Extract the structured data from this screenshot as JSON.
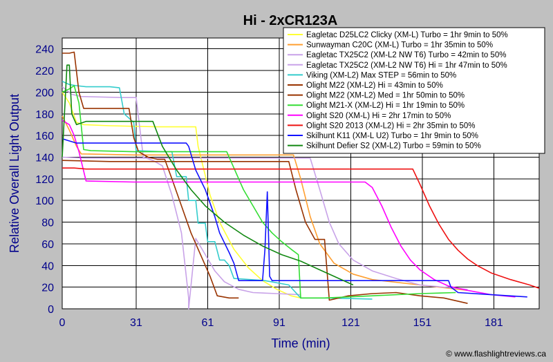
{
  "chart_data": {
    "type": "line",
    "title": "Hi - 2xCR123A",
    "xlabel": "Time (min)",
    "ylabel": "Relative Overall Light Output",
    "xlim": [
      0,
      200
    ],
    "ylim": [
      0,
      250
    ],
    "xticks": [
      0,
      31,
      61,
      91,
      121,
      151,
      181
    ],
    "yticks": [
      0,
      20,
      40,
      60,
      80,
      100,
      120,
      140,
      160,
      180,
      200,
      220,
      240
    ],
    "grid": true,
    "legend_position": "top-right",
    "credit": "© www.flashlightreviews.ca",
    "colors": {
      "background": "#c0c0c0",
      "plot_background": "#ffffff",
      "grid": "#000000",
      "axis_text": "#00008b"
    },
    "series": [
      {
        "name": "Eagletac D25LC2 Clicky (XM-L) Turbo = 1hr 9min to 50%",
        "color": "#ffff33",
        "points": [
          [
            0,
            200
          ],
          [
            3,
            190
          ],
          [
            6,
            172
          ],
          [
            9,
            170
          ],
          [
            20,
            169
          ],
          [
            40,
            168
          ],
          [
            56,
            168
          ],
          [
            57,
            150
          ],
          [
            62,
            105
          ],
          [
            66,
            80
          ],
          [
            72,
            55
          ],
          [
            78,
            38
          ],
          [
            84,
            26
          ],
          [
            90,
            18
          ],
          [
            96,
            12
          ],
          [
            100,
            10
          ]
        ]
      },
      {
        "name": "Sunwayman C20C (XM-L) Turbo = 1hr 35min to 50%",
        "color": "#ff9f30",
        "points": [
          [
            0,
            178
          ],
          [
            3,
            165
          ],
          [
            6,
            150
          ],
          [
            8,
            143
          ],
          [
            30,
            142
          ],
          [
            60,
            142
          ],
          [
            90,
            142
          ],
          [
            97,
            142
          ],
          [
            100,
            120
          ],
          [
            104,
            85
          ],
          [
            108,
            60
          ],
          [
            114,
            42
          ],
          [
            122,
            32
          ],
          [
            130,
            27
          ],
          [
            150,
            22
          ],
          [
            170,
            17
          ]
        ]
      },
      {
        "name": "Eagletac TX25C2 (XM-L2 NW T6) Turbo = 42min to 50%",
        "color": "#c8a2e8",
        "points": [
          [
            0,
            205
          ],
          [
            4,
            198
          ],
          [
            8,
            196
          ],
          [
            25,
            195
          ],
          [
            31,
            195
          ],
          [
            34,
            140
          ],
          [
            38,
            137
          ],
          [
            42,
            132
          ],
          [
            46,
            105
          ],
          [
            50,
            70
          ],
          [
            53,
            10
          ],
          [
            53,
            0
          ],
          [
            56,
            65
          ],
          [
            60,
            50
          ],
          [
            64,
            35
          ],
          [
            68,
            25
          ],
          [
            74,
            18
          ],
          [
            80,
            15
          ],
          [
            90,
            14
          ],
          [
            100,
            13
          ]
        ]
      },
      {
        "name": "Eagletac TX25C2 (XM-L2 NW T6) Hi = 1hr 47min to 50%",
        "color": "#c8a2e8",
        "points": [
          [
            0,
            140
          ],
          [
            10,
            139
          ],
          [
            30,
            139
          ],
          [
            60,
            139
          ],
          [
            90,
            139
          ],
          [
            104,
            139
          ],
          [
            108,
            110
          ],
          [
            112,
            80
          ],
          [
            116,
            60
          ],
          [
            122,
            45
          ],
          [
            130,
            35
          ],
          [
            140,
            28
          ],
          [
            150,
            22
          ],
          [
            170,
            18
          ]
        ]
      },
      {
        "name": "Viking (XM-L2) Max STEP = 56min to 50%",
        "color": "#33cccc",
        "points": [
          [
            0,
            210
          ],
          [
            3,
            207
          ],
          [
            6,
            206
          ],
          [
            10,
            205
          ],
          [
            20,
            205
          ],
          [
            24,
            204
          ],
          [
            26,
            180
          ],
          [
            30,
            172
          ],
          [
            31,
            146
          ],
          [
            42,
            145
          ],
          [
            46,
            145
          ],
          [
            48,
            122
          ],
          [
            50,
            122
          ],
          [
            52,
            122
          ],
          [
            53,
            100
          ],
          [
            56,
            100
          ],
          [
            57,
            79
          ],
          [
            60,
            79
          ],
          [
            61,
            62
          ],
          [
            62,
            62
          ],
          [
            64,
            62
          ],
          [
            66,
            45
          ],
          [
            68,
            45
          ],
          [
            70,
            40
          ],
          [
            72,
            28
          ],
          [
            85,
            26
          ],
          [
            95,
            22
          ],
          [
            100,
            10
          ],
          [
            110,
            10
          ],
          [
            130,
            9
          ]
        ]
      },
      {
        "name": "Olight M22 (XM-L2) Hi = 43min to 50%",
        "color": "#993300",
        "points": [
          [
            0,
            236
          ],
          [
            3,
            236
          ],
          [
            5,
            237
          ],
          [
            7,
            200
          ],
          [
            9,
            185
          ],
          [
            20,
            185
          ],
          [
            28,
            185
          ],
          [
            30,
            158
          ],
          [
            32,
            145
          ],
          [
            36,
            140
          ],
          [
            40,
            138
          ],
          [
            43,
            138
          ],
          [
            46,
            120
          ],
          [
            50,
            95
          ],
          [
            54,
            70
          ],
          [
            58,
            50
          ],
          [
            62,
            30
          ],
          [
            65,
            12
          ],
          [
            70,
            10
          ],
          [
            74,
            10
          ]
        ]
      },
      {
        "name": "Olight M22 (XM-L2) Med = 1hr 50min to 50%",
        "color": "#993300",
        "points": [
          [
            0,
            137
          ],
          [
            20,
            136
          ],
          [
            60,
            136
          ],
          [
            95,
            136
          ],
          [
            98,
            110
          ],
          [
            102,
            80
          ],
          [
            106,
            64
          ],
          [
            110,
            64
          ],
          [
            112,
            8
          ],
          [
            120,
            12
          ],
          [
            130,
            14
          ],
          [
            140,
            15
          ],
          [
            150,
            12
          ],
          [
            160,
            10
          ],
          [
            170,
            5
          ]
        ]
      },
      {
        "name": "Olight M21-X (XM-L2) Hi = 1hr 19min to 50%",
        "color": "#33dd33",
        "points": [
          [
            0,
            200
          ],
          [
            3,
            203
          ],
          [
            5,
            206
          ],
          [
            7,
            190
          ],
          [
            9,
            147
          ],
          [
            12,
            146
          ],
          [
            30,
            145
          ],
          [
            50,
            145
          ],
          [
            69,
            145
          ],
          [
            72,
            130
          ],
          [
            76,
            110
          ],
          [
            80,
            95
          ],
          [
            84,
            80
          ],
          [
            88,
            70
          ],
          [
            92,
            62
          ],
          [
            96,
            55
          ],
          [
            99,
            50
          ],
          [
            100,
            10
          ],
          [
            110,
            10
          ],
          [
            130,
            12
          ],
          [
            150,
            14
          ],
          [
            165,
            15
          ]
        ]
      },
      {
        "name": "Olight S20 (XM-L) Hi = 2hr 17min to 50%",
        "color": "#ff00ff",
        "points": [
          [
            0,
            174
          ],
          [
            3,
            170
          ],
          [
            5,
            160
          ],
          [
            7,
            145
          ],
          [
            10,
            118
          ],
          [
            30,
            117
          ],
          [
            80,
            117
          ],
          [
            110,
            117
          ],
          [
            127,
            117
          ],
          [
            130,
            112
          ],
          [
            134,
            95
          ],
          [
            138,
            75
          ],
          [
            142,
            58
          ],
          [
            146,
            45
          ],
          [
            150,
            36
          ],
          [
            156,
            27
          ],
          [
            162,
            21
          ],
          [
            170,
            17
          ],
          [
            180,
            13
          ],
          [
            190,
            11
          ]
        ]
      },
      {
        "name": "Olight S20 2013 (XM-L2) Hi = 2hr 35min to 50%",
        "color": "#ee1111",
        "points": [
          [
            0,
            130
          ],
          [
            5,
            130
          ],
          [
            10,
            129
          ],
          [
            40,
            129
          ],
          [
            80,
            129
          ],
          [
            120,
            129
          ],
          [
            147,
            129
          ],
          [
            150,
            115
          ],
          [
            154,
            95
          ],
          [
            158,
            78
          ],
          [
            162,
            64
          ],
          [
            166,
            54
          ],
          [
            170,
            46
          ],
          [
            174,
            40
          ],
          [
            180,
            33
          ],
          [
            188,
            27
          ],
          [
            196,
            22
          ],
          [
            200,
            19
          ]
        ]
      },
      {
        "name": "Skilhunt K11 (XM-L U2) Turbo = 1hr 9min to 50%",
        "color": "#1111ff",
        "points": [
          [
            0,
            157
          ],
          [
            3,
            155
          ],
          [
            6,
            153
          ],
          [
            20,
            153
          ],
          [
            40,
            153
          ],
          [
            52,
            153
          ],
          [
            53,
            150
          ],
          [
            56,
            128
          ],
          [
            60,
            110
          ],
          [
            64,
            85
          ],
          [
            66,
            70
          ],
          [
            70,
            52
          ],
          [
            72,
            42
          ],
          [
            74,
            26
          ],
          [
            84,
            26
          ],
          [
            85,
            55
          ],
          [
            86,
            108
          ],
          [
            87,
            30
          ],
          [
            88,
            26
          ],
          [
            100,
            26
          ],
          [
            140,
            26
          ],
          [
            162,
            26
          ],
          [
            163,
            20
          ],
          [
            166,
            15
          ],
          [
            180,
            13
          ],
          [
            195,
            11
          ]
        ]
      },
      {
        "name": "Skilhunt Defier S2 (XM-L2) Turbo = 59min to 50%",
        "color": "#118811",
        "points": [
          [
            0,
            140
          ],
          [
            2,
            225
          ],
          [
            3,
            225
          ],
          [
            4,
            180
          ],
          [
            6,
            170
          ],
          [
            10,
            173
          ],
          [
            20,
            173
          ],
          [
            38,
            173
          ],
          [
            42,
            150
          ],
          [
            48,
            128
          ],
          [
            54,
            110
          ],
          [
            60,
            95
          ],
          [
            68,
            80
          ],
          [
            76,
            68
          ],
          [
            84,
            58
          ],
          [
            92,
            50
          ],
          [
            100,
            44
          ],
          [
            108,
            36
          ],
          [
            116,
            28
          ],
          [
            122,
            22
          ]
        ]
      }
    ]
  }
}
